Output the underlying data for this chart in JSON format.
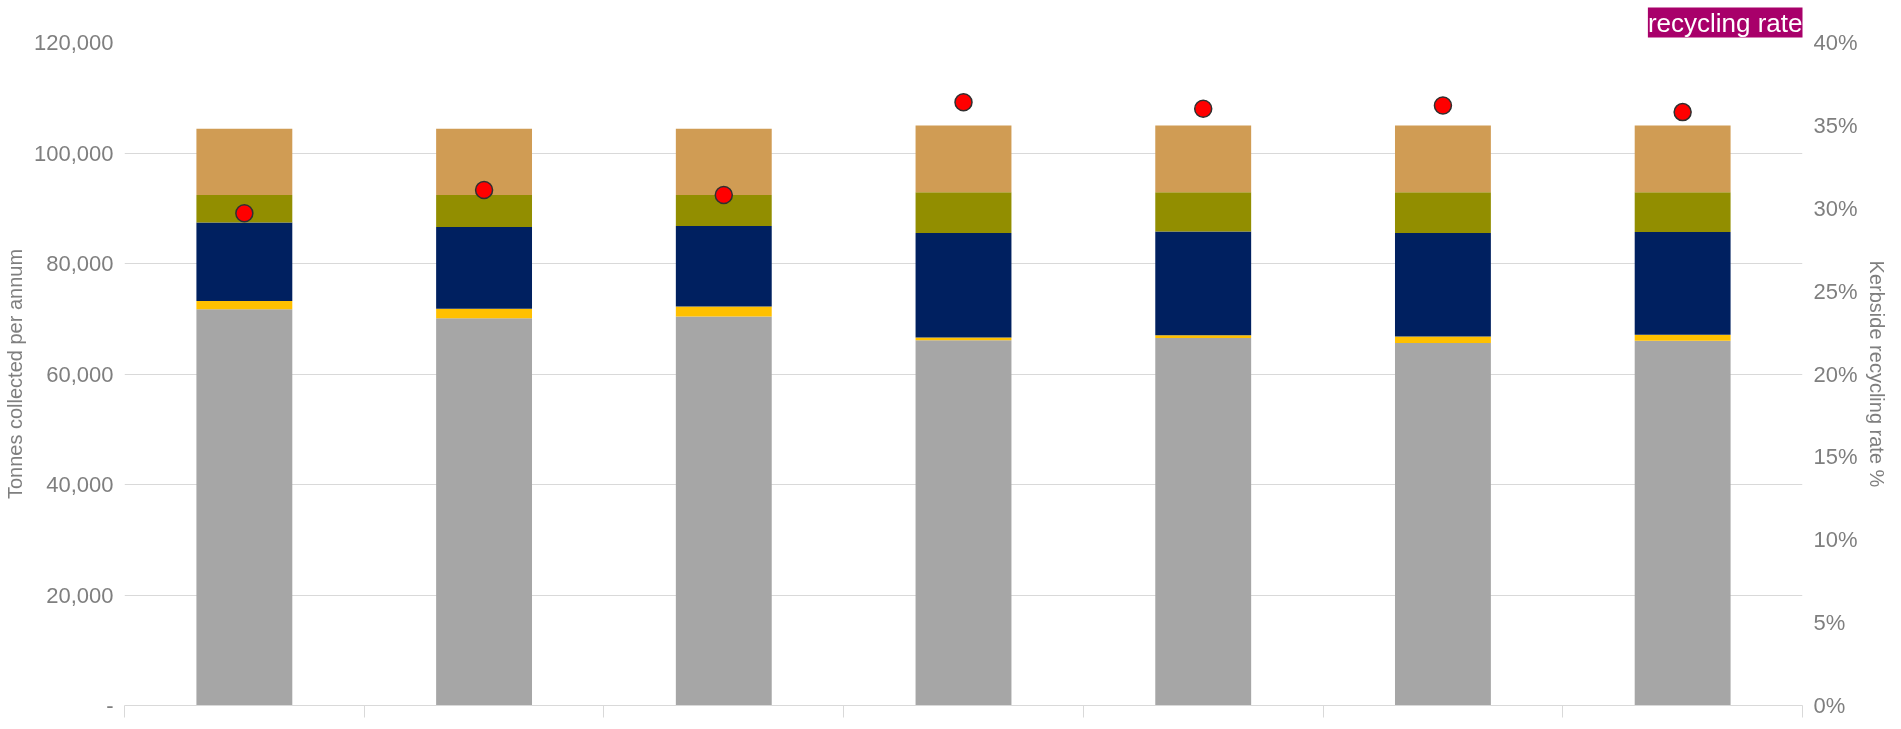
{
  "chart_data": {
    "type": "bar",
    "stacked": true,
    "title": "recycling rate",
    "ylabel": "Tonnes collected per annum",
    "y2label": "Kerbside recycling rate %",
    "categories": [
      null,
      null,
      null,
      null,
      null,
      null,
      null
    ],
    "series": [
      {
        "color": "#a6a6a6",
        "values": [
          71700,
          70100,
          70400,
          66100,
          66500,
          65600,
          66000
        ]
      },
      {
        "color": "#ffc000",
        "values": [
          1500,
          1700,
          1800,
          500,
          500,
          1200,
          1100
        ]
      },
      {
        "color": "#002060",
        "values": [
          14200,
          14800,
          14600,
          18900,
          18800,
          18700,
          18600
        ]
      },
      {
        "color": "#928e00",
        "values": [
          5000,
          5800,
          5600,
          7400,
          7100,
          7400,
          7200
        ]
      },
      {
        "color": "#d09c54",
        "values": [
          12000,
          12000,
          12000,
          12100,
          12100,
          12100,
          12100
        ]
      },
      {
        "type": "scatter",
        "axis": "y2",
        "marker": "circle",
        "color": "#ff0000",
        "values": [
          29.7,
          31.1,
          30.8,
          36.4,
          36.0,
          36.2,
          35.8
        ]
      }
    ],
    "ylim": [
      0,
      120000
    ],
    "yticks": [
      {
        "value": 0,
        "label": "-"
      },
      {
        "value": 20000,
        "label": "20,000"
      },
      {
        "value": 40000,
        "label": "40,000"
      },
      {
        "value": 60000,
        "label": "60,000"
      },
      {
        "value": 80000,
        "label": "80,000"
      },
      {
        "value": 100000,
        "label": "100,000"
      },
      {
        "value": 120000,
        "label": "120,000"
      }
    ],
    "y2lim": [
      0,
      40
    ],
    "y2ticks": [
      {
        "value": 0,
        "label": "0%"
      },
      {
        "value": 5,
        "label": "5%"
      },
      {
        "value": 10,
        "label": "10%"
      },
      {
        "value": 15,
        "label": "15%"
      },
      {
        "value": 20,
        "label": "20%"
      },
      {
        "value": 25,
        "label": "25%"
      },
      {
        "value": 30,
        "label": "30%"
      },
      {
        "value": 35,
        "label": "35%"
      },
      {
        "value": 40,
        "label": "40%"
      }
    ],
    "grid": "y"
  }
}
